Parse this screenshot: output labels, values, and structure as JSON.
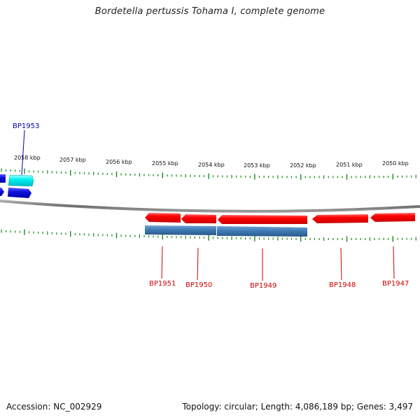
{
  "header": {
    "title": "Bordetella pertussis Tohama I, complete genome"
  },
  "footer": {
    "accession": "Accession: NC_002929",
    "summary": "Topology: circular; Length: 4,086,189 bp; Genes: 3,497"
  },
  "colors": {
    "forward_gene": "#ff0000",
    "reverse_gene": "#1010e0",
    "cds_bar": "#3e7ab5",
    "feature_cyan": "#00ffff",
    "backbone": "#7a7a7a",
    "ticks": "#1a8a1a",
    "label_forward": "#cc0000",
    "label_reverse": "#0000aa"
  },
  "kbp_labels": [
    "2058 kbp",
    "2057 kbp",
    "2056 kbp",
    "2055 kbp",
    "2054 kbp",
    "2053 kbp",
    "2052 kbp",
    "2051 kbp",
    "2050 kbp"
  ],
  "gene_labels": [
    {
      "name": "BP1953",
      "strand": "reverse"
    },
    {
      "name": "BP1951",
      "strand": "forward"
    },
    {
      "name": "BP1950",
      "strand": "forward"
    },
    {
      "name": "BP1949",
      "strand": "forward"
    },
    {
      "name": "BP1948",
      "strand": "forward"
    },
    {
      "name": "BP1947",
      "strand": "forward"
    }
  ]
}
